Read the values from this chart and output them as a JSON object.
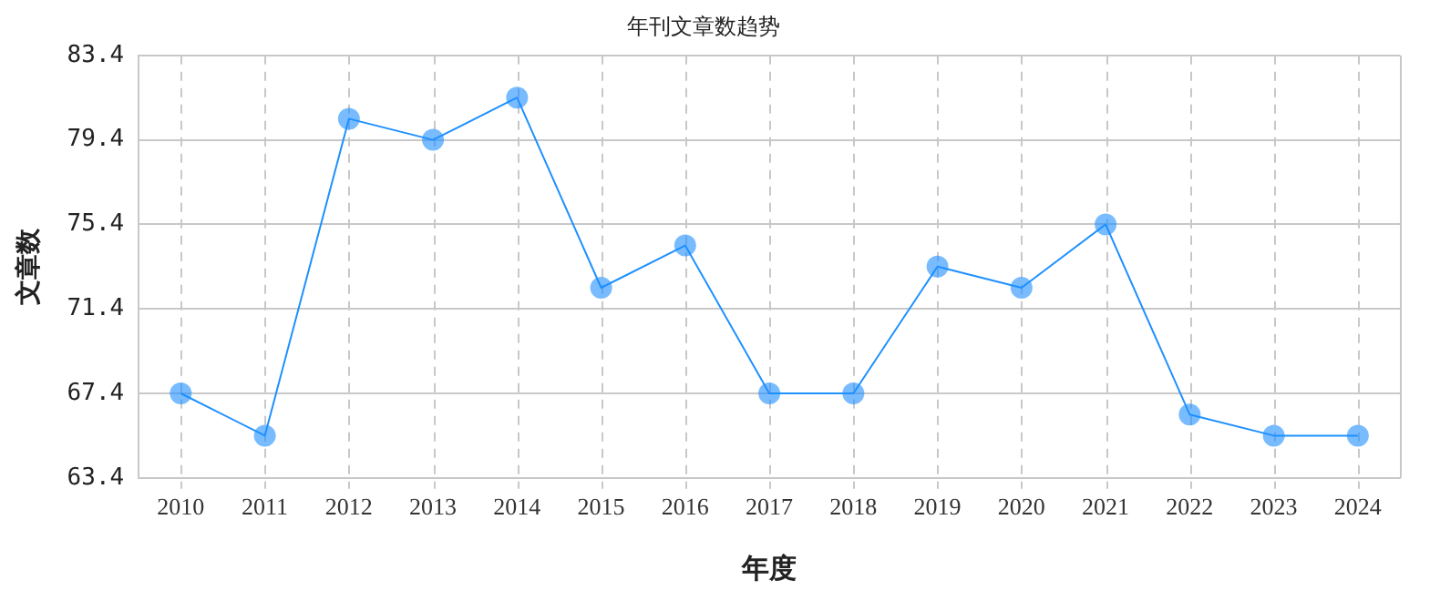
{
  "chart_data": {
    "type": "line",
    "title": "年刊文章数趋势",
    "xlabel": "年度",
    "ylabel": "文章数",
    "categories": [
      "2010",
      "2011",
      "2012",
      "2013",
      "2014",
      "2015",
      "2016",
      "2017",
      "2018",
      "2019",
      "2020",
      "2021",
      "2022",
      "2023",
      "2024"
    ],
    "series": [
      {
        "color": "#1e90ff",
        "values": [
          67.4,
          65.4,
          80.4,
          79.4,
          81.4,
          72.4,
          74.4,
          67.4,
          67.4,
          73.4,
          72.4,
          75.4,
          66.4,
          65.4,
          65.4
        ]
      }
    ],
    "ylim": [
      63.4,
      83.4
    ],
    "yticks": [
      63.4,
      67.4,
      71.4,
      75.4,
      79.4,
      83.4
    ],
    "grid": true,
    "marker": "circle",
    "line_style": "solid",
    "legend": false
  }
}
